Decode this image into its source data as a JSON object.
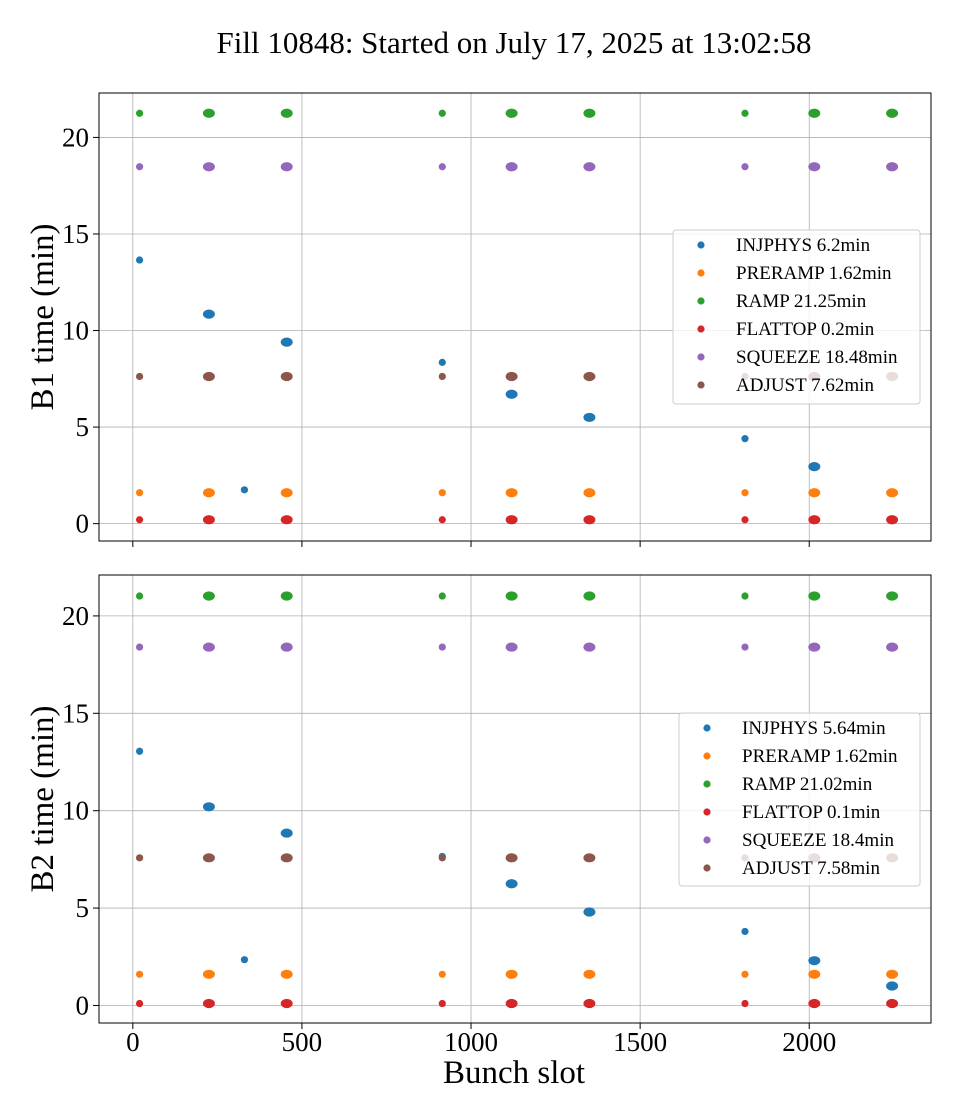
{
  "figure": {
    "title": "Fill 10848: Started on July 17, 2025 at 13:02:58",
    "xlabel": "Bunch slot"
  },
  "chart_data": [
    {
      "type": "scatter",
      "panel": "B1",
      "ylabel": "B1 time (min)",
      "xlim": [
        -100,
        2360
      ],
      "ylim": [
        -0.9,
        22.3
      ],
      "xticks": [
        0,
        500,
        1000,
        1500,
        2000
      ],
      "xtick_labels": [
        "0",
        "500",
        "1000",
        "1500",
        "2000"
      ],
      "yticks": [
        0,
        5,
        10,
        15,
        20
      ],
      "ytick_labels": [
        "0",
        "5",
        "10",
        "15",
        "20"
      ],
      "grid": true,
      "legend_position": "center-right",
      "x": [
        20,
        225,
        455,
        915,
        1120,
        1350,
        1810,
        2015,
        2245
      ],
      "series": [
        {
          "name": "INJPHYS 6.2min",
          "color": "#1f77b4",
          "values": [
            13.65,
            10.85,
            9.4,
            8.35,
            6.7,
            5.5,
            4.4,
            2.95,
            null
          ],
          "extra_points": [
            {
              "x": 330,
              "y": 1.75
            }
          ]
        },
        {
          "name": "PRERAMP 1.62min",
          "color": "#ff7f0e",
          "values": [
            1.6,
            1.6,
            1.6,
            1.6,
            1.6,
            1.6,
            1.6,
            1.6,
            1.6
          ]
        },
        {
          "name": "RAMP 21.25min",
          "color": "#2ca02c",
          "values": [
            21.25,
            21.25,
            21.25,
            21.25,
            21.25,
            21.25,
            21.25,
            21.25,
            21.25
          ]
        },
        {
          "name": "FLATTOP 0.2min",
          "color": "#d62728",
          "values": [
            0.2,
            0.2,
            0.2,
            0.2,
            0.2,
            0.2,
            0.2,
            0.2,
            0.2
          ]
        },
        {
          "name": "SQUEEZE 18.48min",
          "color": "#9467bd",
          "values": [
            18.48,
            18.48,
            18.48,
            18.48,
            18.48,
            18.48,
            18.48,
            18.48,
            18.48
          ]
        },
        {
          "name": "ADJUST 7.62min",
          "color": "#8c564b",
          "values": [
            7.62,
            7.62,
            7.62,
            7.62,
            7.62,
            7.62,
            7.62,
            7.62,
            7.62
          ]
        }
      ]
    },
    {
      "type": "scatter",
      "panel": "B2",
      "ylabel": "B2 time (min)",
      "xlim": [
        -100,
        2360
      ],
      "ylim": [
        -0.9,
        22.1
      ],
      "xticks": [
        0,
        500,
        1000,
        1500,
        2000
      ],
      "xtick_labels": [
        "0",
        "500",
        "1000",
        "1500",
        "2000"
      ],
      "yticks": [
        0,
        5,
        10,
        15,
        20
      ],
      "ytick_labels": [
        "0",
        "5",
        "10",
        "15",
        "20"
      ],
      "grid": true,
      "legend_position": "center-right",
      "x": [
        20,
        225,
        455,
        915,
        1120,
        1350,
        1810,
        2015,
        2245
      ],
      "series": [
        {
          "name": "INJPHYS 5.64min",
          "color": "#1f77b4",
          "values": [
            13.05,
            10.2,
            8.85,
            7.65,
            6.25,
            4.8,
            3.8,
            2.3,
            1.0
          ],
          "extra_points": [
            {
              "x": 330,
              "y": 2.35
            }
          ]
        },
        {
          "name": "PRERAMP 1.62min",
          "color": "#ff7f0e",
          "values": [
            1.6,
            1.6,
            1.6,
            1.6,
            1.6,
            1.6,
            1.6,
            1.6,
            1.6
          ]
        },
        {
          "name": "RAMP 21.02min",
          "color": "#2ca02c",
          "values": [
            21.02,
            21.02,
            21.02,
            21.02,
            21.02,
            21.02,
            21.02,
            21.02,
            21.02
          ]
        },
        {
          "name": "FLATTOP 0.1min",
          "color": "#d62728",
          "values": [
            0.1,
            0.1,
            0.1,
            0.1,
            0.1,
            0.1,
            0.1,
            0.1,
            0.1
          ]
        },
        {
          "name": "SQUEEZE 18.4min",
          "color": "#9467bd",
          "values": [
            18.4,
            18.4,
            18.4,
            18.4,
            18.4,
            18.4,
            18.4,
            18.4,
            18.4
          ]
        },
        {
          "name": "ADJUST 7.58min",
          "color": "#8c564b",
          "values": [
            7.58,
            7.58,
            7.58,
            7.58,
            7.58,
            7.58,
            7.58,
            7.58,
            7.58
          ]
        }
      ]
    }
  ]
}
